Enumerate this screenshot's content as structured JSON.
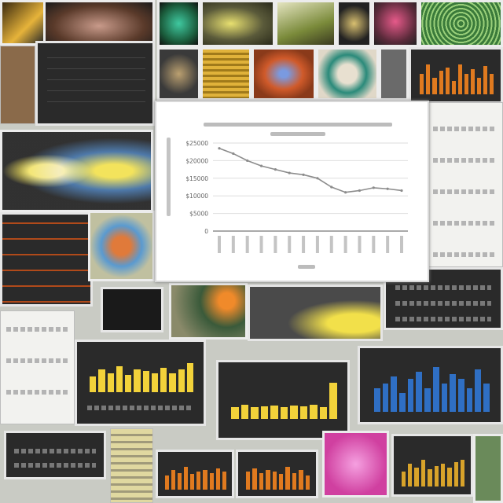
{
  "colors": {
    "background": "#c9cbc4",
    "line": "#8c8c8c",
    "bar_orange": "#e07a1f",
    "bar_yellow": "#f2d23a",
    "bar_blue": "#2f6fc4",
    "bar_gold": "#d8a32a"
  },
  "chart_data": {
    "type": "line",
    "title": "",
    "ylabel": "",
    "xlabel": "",
    "y_ticks": [
      "0",
      "$5000",
      "$10000",
      "$15000",
      "$20000",
      "$25000"
    ],
    "ylim": [
      0,
      25000
    ],
    "x": [
      1,
      2,
      3,
      4,
      5,
      6,
      7,
      8,
      9,
      10,
      11,
      12,
      13,
      14
    ],
    "series": [
      {
        "values": [
          23500,
          22000,
          20000,
          18500,
          17500,
          16500,
          16000,
          15000,
          12500,
          11000,
          11500,
          12300,
          12000,
          11500
        ]
      }
    ],
    "grid": true,
    "legend": "none"
  },
  "thumbnails": {
    "orange_bars": [
      0.6,
      0.9,
      0.5,
      0.7,
      0.8,
      0.4,
      0.9,
      0.6,
      0.75,
      0.5,
      0.85,
      0.6
    ],
    "yellow_bars": [
      0.5,
      0.7,
      0.6,
      0.8,
      0.55,
      0.7,
      0.65,
      0.6,
      0.75,
      0.6,
      0.7,
      0.9
    ],
    "blue_bars": [
      0.5,
      0.6,
      0.75,
      0.4,
      0.7,
      0.85,
      0.5,
      0.95,
      0.6,
      0.8,
      0.7,
      0.5,
      0.9,
      0.6
    ],
    "low_bars": [
      0.3,
      0.35,
      0.3,
      0.32,
      0.34,
      0.3,
      0.33,
      0.31,
      0.35,
      0.3,
      0.9
    ],
    "small_orange": [
      0.5,
      0.7,
      0.6,
      0.8,
      0.55,
      0.65,
      0.7,
      0.6,
      0.75,
      0.65
    ],
    "small_gold": [
      0.4,
      0.6,
      0.5,
      0.7,
      0.45,
      0.55,
      0.6,
      0.5,
      0.65,
      0.7
    ]
  }
}
